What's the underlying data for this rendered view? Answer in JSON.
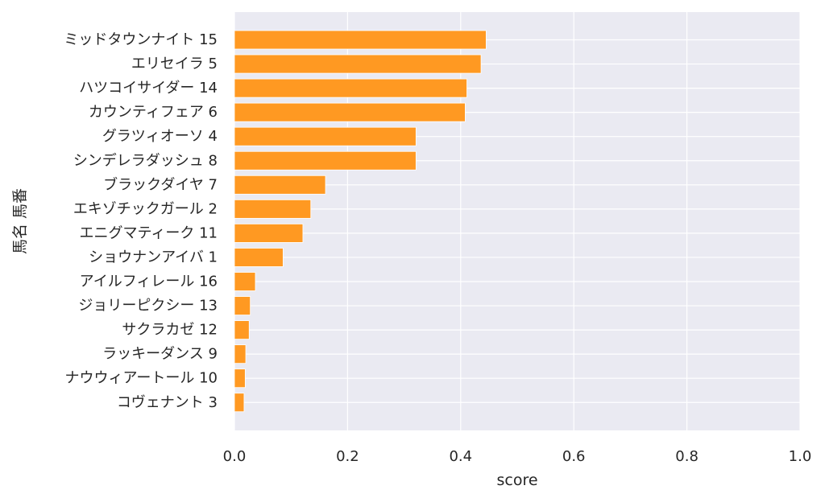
{
  "chart_data": {
    "type": "bar",
    "orientation": "horizontal",
    "title": "",
    "xlabel": "score",
    "ylabel": "馬名 馬番",
    "xlim": [
      0,
      1.0
    ],
    "xticks": [
      "0.0",
      "0.2",
      "0.4",
      "0.6",
      "0.8",
      "1.0"
    ],
    "grid": true,
    "legend": "none",
    "bar_color": "#ff9922",
    "background_color": "#eaeaf2",
    "grid_color": "#ffffff",
    "categories": [
      "ミッドタウンナイト 15",
      "エリセイラ 5",
      "ハツコイサイダー 14",
      "カウンティフェア 6",
      "グラツィオーソ 4",
      "シンデレラダッシュ 8",
      "ブラックダイヤ 7",
      "エキゾチックガール 2",
      "エニグマティーク 11",
      "ショウナンアイバ 1",
      "アイルフィレール 16",
      "ジョリーピクシー 13",
      "サクラカゼ 12",
      "ラッキーダンス 9",
      "ナウウィアートール 10",
      "コヴェナント 3"
    ],
    "values": [
      0.445,
      0.436,
      0.411,
      0.408,
      0.321,
      0.321,
      0.161,
      0.135,
      0.121,
      0.086,
      0.037,
      0.028,
      0.026,
      0.02,
      0.019,
      0.017
    ]
  }
}
